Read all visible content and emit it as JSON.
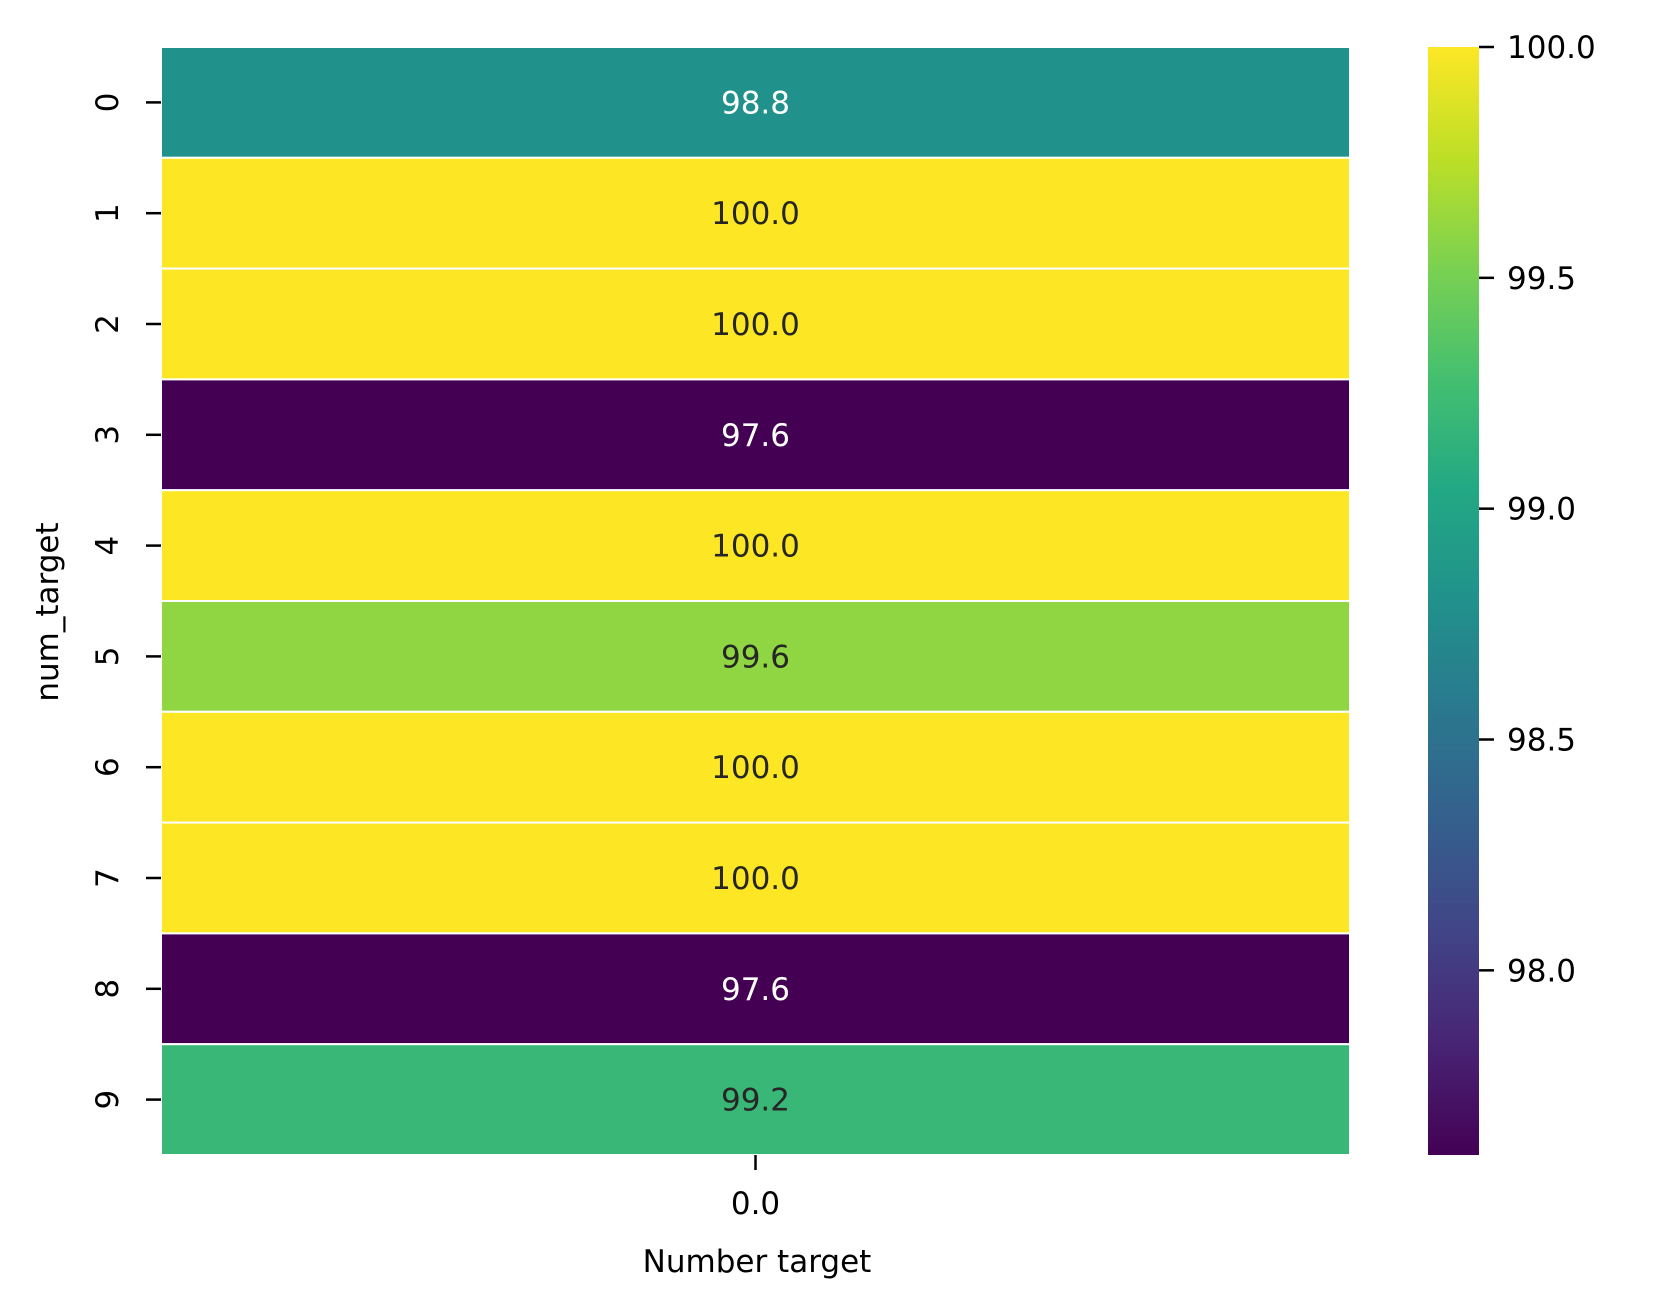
{
  "chart_data": {
    "type": "heatmap",
    "title": "",
    "xlabel": "Number target",
    "ylabel": "num_target",
    "x_categories": [
      "0.0"
    ],
    "y_categories": [
      "0",
      "1",
      "2",
      "3",
      "4",
      "5",
      "6",
      "7",
      "8",
      "9"
    ],
    "values": [
      98.8,
      100.0,
      100.0,
      97.6,
      100.0,
      99.6,
      100.0,
      100.0,
      97.6,
      99.2
    ],
    "value_labels": [
      "98.8",
      "100.0",
      "100.0",
      "97.6",
      "100.0",
      "99.6",
      "100.0",
      "100.0",
      "97.6",
      "99.2"
    ],
    "colorbar": {
      "min": 97.6,
      "max": 100.0,
      "ticks": [
        98.0,
        98.5,
        99.0,
        99.5,
        100.0
      ],
      "tick_labels": [
        "98.0",
        "98.5",
        "99.0",
        "99.5",
        "100.0"
      ],
      "colormap": "viridis",
      "position": "right"
    },
    "colors": {
      "cell_border": "#ffffff",
      "dark_text": "#262626",
      "light_text": "#ffffff",
      "axis_text": "#000000"
    },
    "grid": false
  }
}
